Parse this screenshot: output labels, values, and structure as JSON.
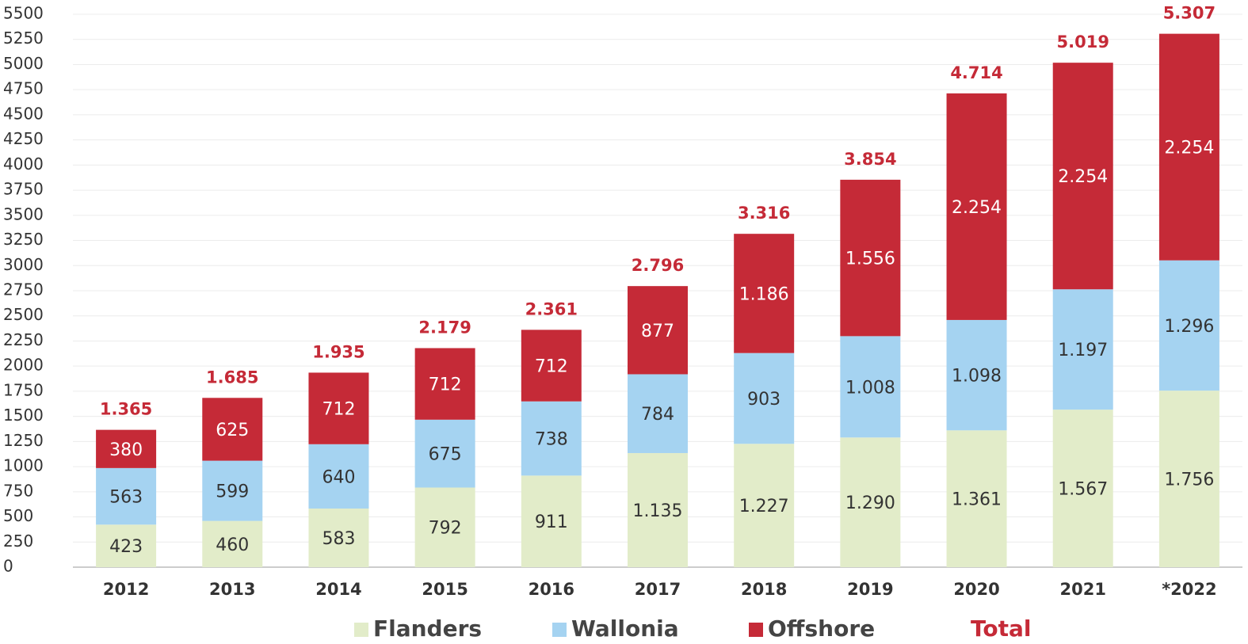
{
  "chart_data": {
    "type": "stacked-bar",
    "categories": [
      "2012",
      "2013",
      "2014",
      "2015",
      "2016",
      "2017",
      "2018",
      "2019",
      "2020",
      "2021",
      "*2022"
    ],
    "series": [
      {
        "name": "Flanders",
        "color": "#e2ecc9",
        "label_color": "#333333",
        "values": [
          423,
          460,
          583,
          792,
          911,
          1135,
          1227,
          1290,
          1361,
          1567,
          1756
        ],
        "value_labels": [
          "423",
          "460",
          "583",
          "792",
          "911",
          "1.135",
          "1.227",
          "1.290",
          "1.361",
          "1.567",
          "1.756"
        ]
      },
      {
        "name": "Wallonia",
        "color": "#a5d3f1",
        "label_color": "#333333",
        "values": [
          563,
          599,
          640,
          675,
          738,
          784,
          903,
          1008,
          1098,
          1197,
          1296
        ],
        "value_labels": [
          "563",
          "599",
          "640",
          "675",
          "738",
          "784",
          "903",
          "1.008",
          "1.098",
          "1.197",
          "1.296"
        ]
      },
      {
        "name": "Offshore",
        "color": "#c52a37",
        "label_color": "#ffffff",
        "values": [
          380,
          625,
          712,
          712,
          712,
          877,
          1186,
          1556,
          2254,
          2254,
          2254
        ],
        "value_labels": [
          "380",
          "625",
          "712",
          "712",
          "712",
          "877",
          "1.186",
          "1.556",
          "2.254",
          "2.254",
          "2.254"
        ]
      },
      {
        "name": "Total",
        "color": "#c52a37",
        "kind": "label",
        "values": [
          1365,
          1685,
          1935,
          2179,
          2361,
          2796,
          3316,
          3854,
          4714,
          5019,
          5307
        ],
        "value_labels": [
          "1.365",
          "1.685",
          "1.935",
          "2.179",
          "2.361",
          "2.796",
          "3.316",
          "3.854",
          "4.714",
          "5.019",
          "5.307"
        ]
      }
    ],
    "ylim": [
      0,
      5500
    ],
    "yticks": [
      0,
      250,
      500,
      750,
      1000,
      1250,
      1500,
      1750,
      2000,
      2250,
      2500,
      2750,
      3000,
      3250,
      3500,
      3750,
      4000,
      4250,
      4500,
      4750,
      5000,
      5250,
      5500
    ],
    "grid": true,
    "legend": "bottom"
  }
}
